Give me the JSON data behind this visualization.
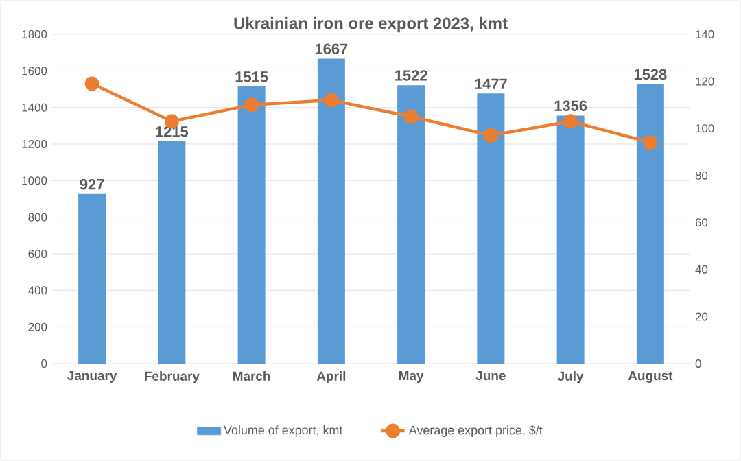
{
  "chart_data": {
    "type": "bar",
    "title": "Ukrainian iron ore export 2023, kmt",
    "categories": [
      "January",
      "February",
      "March",
      "April",
      "May",
      "June",
      "July",
      "August"
    ],
    "series": [
      {
        "name": "Volume of export, kmt",
        "color": "#5b9bd5",
        "values": [
          927,
          1215,
          1515,
          1667,
          1522,
          1477,
          1356,
          1528
        ],
        "value_labels": [
          "927",
          "1215",
          "1515",
          "1667",
          "1522",
          "1477",
          "1356",
          "1528"
        ]
      },
      {
        "name": "Average export price, $/t",
        "type": "line",
        "axis": "y2",
        "color": "#ed7d31",
        "marker": "circle",
        "values": [
          119,
          103,
          110,
          112,
          105,
          97,
          103,
          94
        ]
      }
    ],
    "ylim": [
      0,
      1800
    ],
    "yticks": [
      0,
      200,
      400,
      600,
      800,
      1000,
      1200,
      1400,
      1600,
      1800
    ],
    "y2lim": [
      0,
      140
    ],
    "y2ticks": [
      0,
      20,
      40,
      60,
      80,
      100,
      120,
      140
    ],
    "grid": "y",
    "legend": "bottom"
  }
}
